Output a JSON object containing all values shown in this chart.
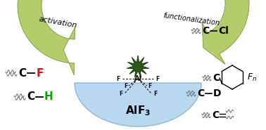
{
  "bg_color": "#ffffff",
  "ellipse_color": "#b8d8f0",
  "ellipse_edge": "#90b8d8",
  "arrow_color": "#b5cc6a",
  "arrow_edge": "#7a9a30",
  "star_color": "#2d5a1a",
  "star_edge": "#1a3a0a",
  "activation_label": "activation",
  "functionalization_label": "functionalization",
  "alf3_label": "AlF$_3$",
  "al_label": "Al",
  "f_label": "F"
}
